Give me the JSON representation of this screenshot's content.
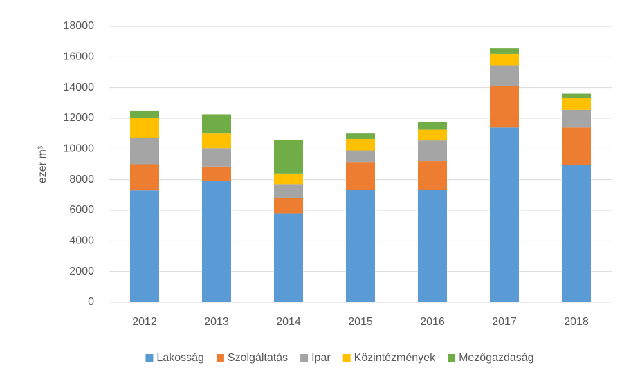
{
  "chart_data": {
    "type": "stacked_bar",
    "y_label": "ezer m³",
    "categories": [
      "2012",
      "2013",
      "2014",
      "2015",
      "2016",
      "2017",
      "2018"
    ],
    "series": [
      {
        "name": "Lakosság",
        "color": "#5b9bd5",
        "values": [
          7300,
          7900,
          5800,
          7350,
          7350,
          11400,
          8950
        ]
      },
      {
        "name": "Szolgáltatás",
        "color": "#ed7d31",
        "values": [
          1700,
          950,
          1000,
          1800,
          1850,
          2700,
          2450
        ]
      },
      {
        "name": "Ipar",
        "color": "#a5a5a5",
        "values": [
          1700,
          1200,
          900,
          750,
          1350,
          1350,
          1150
        ]
      },
      {
        "name": "Közintézmények",
        "color": "#ffc000",
        "values": [
          1300,
          950,
          700,
          750,
          700,
          750,
          800
        ]
      },
      {
        "name": "Mezőgazdaság",
        "color": "#70ad47",
        "values": [
          500,
          1250,
          2200,
          350,
          500,
          350,
          250
        ]
      }
    ],
    "ylim": [
      0,
      18000
    ],
    "yticks": [
      0,
      2000,
      4000,
      6000,
      8000,
      10000,
      12000,
      14000,
      16000,
      18000
    ],
    "grid": true,
    "legend": "bottom"
  }
}
